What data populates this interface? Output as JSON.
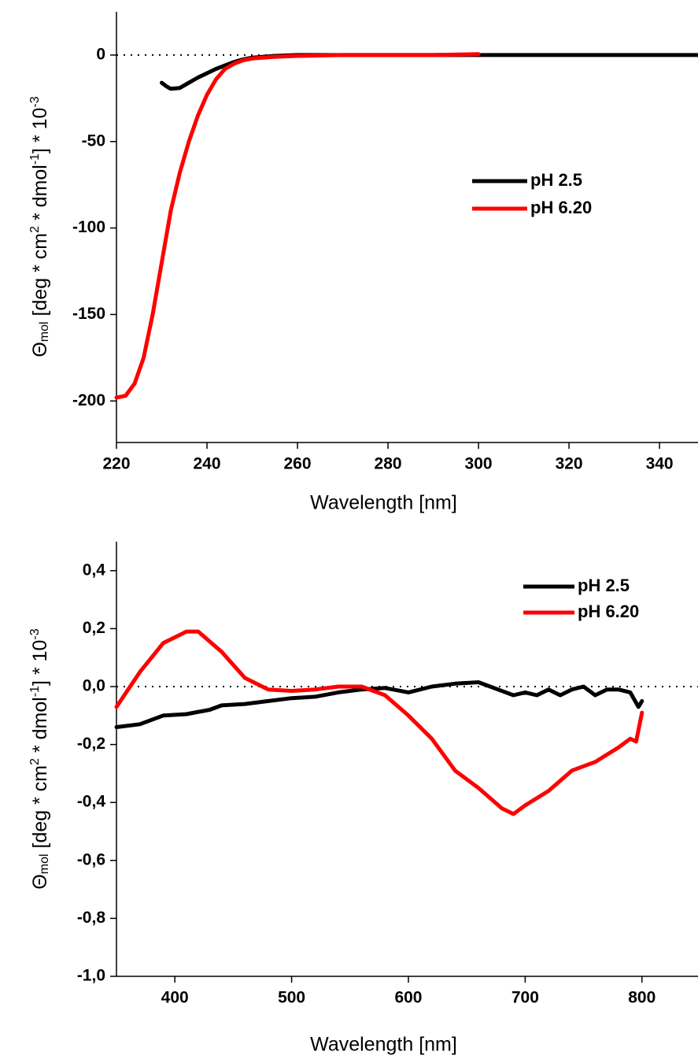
{
  "chart_data": [
    {
      "type": "line",
      "xlabel": "Wavelength [nm]",
      "ylabel": [
        "Θ",
        "mol",
        " [deg * cm",
        "2",
        " * dmol",
        "-1",
        "] * 10",
        "-3"
      ],
      "xlim": [
        220,
        348.5
      ],
      "xticks": [
        220,
        240,
        260,
        280,
        300,
        320,
        340
      ],
      "ylim": [
        -224,
        25
      ],
      "yticks": [
        -200,
        -150,
        -100,
        -50,
        0
      ],
      "zero_line": true,
      "legend": "center-right",
      "series": [
        {
          "name": "pH 2.5",
          "color": "#000000",
          "x": [
            230,
            231,
            232,
            234,
            236,
            238,
            240,
            242,
            244,
            246,
            248,
            250,
            255,
            260,
            280,
            300,
            320,
            348.5
          ],
          "values": [
            -16,
            -18,
            -19.5,
            -19,
            -16,
            -13,
            -10.5,
            -8,
            -6,
            -4,
            -2.5,
            -1.5,
            -0.5,
            0,
            0,
            0,
            0,
            0
          ]
        },
        {
          "name": "pH 6.20",
          "color": "#ff0000",
          "x": [
            220,
            222,
            224,
            226,
            228,
            230,
            232,
            234,
            236,
            238,
            240,
            242,
            244,
            246,
            248,
            250,
            255,
            260,
            270,
            280,
            290,
            300
          ],
          "values": [
            -198,
            -197,
            -190,
            -175,
            -150,
            -120,
            -90,
            -68,
            -50,
            -35,
            -23,
            -14,
            -8,
            -5,
            -3,
            -2,
            -1,
            -0.5,
            0,
            0,
            0,
            0.5
          ]
        }
      ]
    },
    {
      "type": "line",
      "xlabel": "Wavelength [nm]",
      "ylabel": [
        "Θ",
        "mol",
        " [deg * cm",
        "2",
        " * dmol",
        "-1",
        "] * 10",
        "-3"
      ],
      "xlim": [
        350,
        848
      ],
      "xticks": [
        400,
        500,
        600,
        700,
        800
      ],
      "ylim": [
        -1.0,
        0.5
      ],
      "yticks": [
        {
          "value": -1.0,
          "label": "-1,0"
        },
        {
          "value": -0.8,
          "label": "-0,8"
        },
        {
          "value": -0.6,
          "label": "-0,6"
        },
        {
          "value": -0.4,
          "label": "-0,4"
        },
        {
          "value": -0.2,
          "label": "-0,2"
        },
        {
          "value": 0.0,
          "label": "0,0"
        },
        {
          "value": 0.2,
          "label": "0,2"
        },
        {
          "value": 0.4,
          "label": "0,4"
        }
      ],
      "zero_line": true,
      "legend": "upper-right",
      "series": [
        {
          "name": "pH 2.5",
          "color": "#000000",
          "x": [
            350,
            370,
            390,
            410,
            430,
            440,
            460,
            480,
            500,
            520,
            540,
            560,
            580,
            600,
            620,
            640,
            660,
            670,
            690,
            700,
            710,
            720,
            730,
            740,
            750,
            760,
            770,
            780,
            790,
            797,
            800
          ],
          "values": [
            -0.14,
            -0.13,
            -0.1,
            -0.095,
            -0.08,
            -0.065,
            -0.06,
            -0.05,
            -0.04,
            -0.035,
            -0.02,
            -0.01,
            -0.005,
            -0.02,
            0.0,
            0.01,
            0.015,
            0.0,
            -0.03,
            -0.02,
            -0.03,
            -0.01,
            -0.03,
            -0.01,
            0.0,
            -0.03,
            -0.01,
            -0.01,
            -0.02,
            -0.07,
            -0.05
          ]
        },
        {
          "name": "pH 6.20",
          "color": "#ff0000",
          "x": [
            350,
            370,
            390,
            410,
            420,
            440,
            460,
            480,
            500,
            520,
            540,
            560,
            580,
            600,
            620,
            640,
            660,
            680,
            690,
            700,
            720,
            740,
            760,
            780,
            790,
            795,
            800
          ],
          "values": [
            -0.07,
            0.05,
            0.15,
            0.19,
            0.19,
            0.12,
            0.03,
            -0.01,
            -0.015,
            -0.01,
            0.0,
            0.0,
            -0.03,
            -0.1,
            -0.18,
            -0.29,
            -0.35,
            -0.42,
            -0.44,
            -0.41,
            -0.36,
            -0.29,
            -0.26,
            -0.21,
            -0.18,
            -0.19,
            -0.09
          ]
        }
      ]
    }
  ]
}
